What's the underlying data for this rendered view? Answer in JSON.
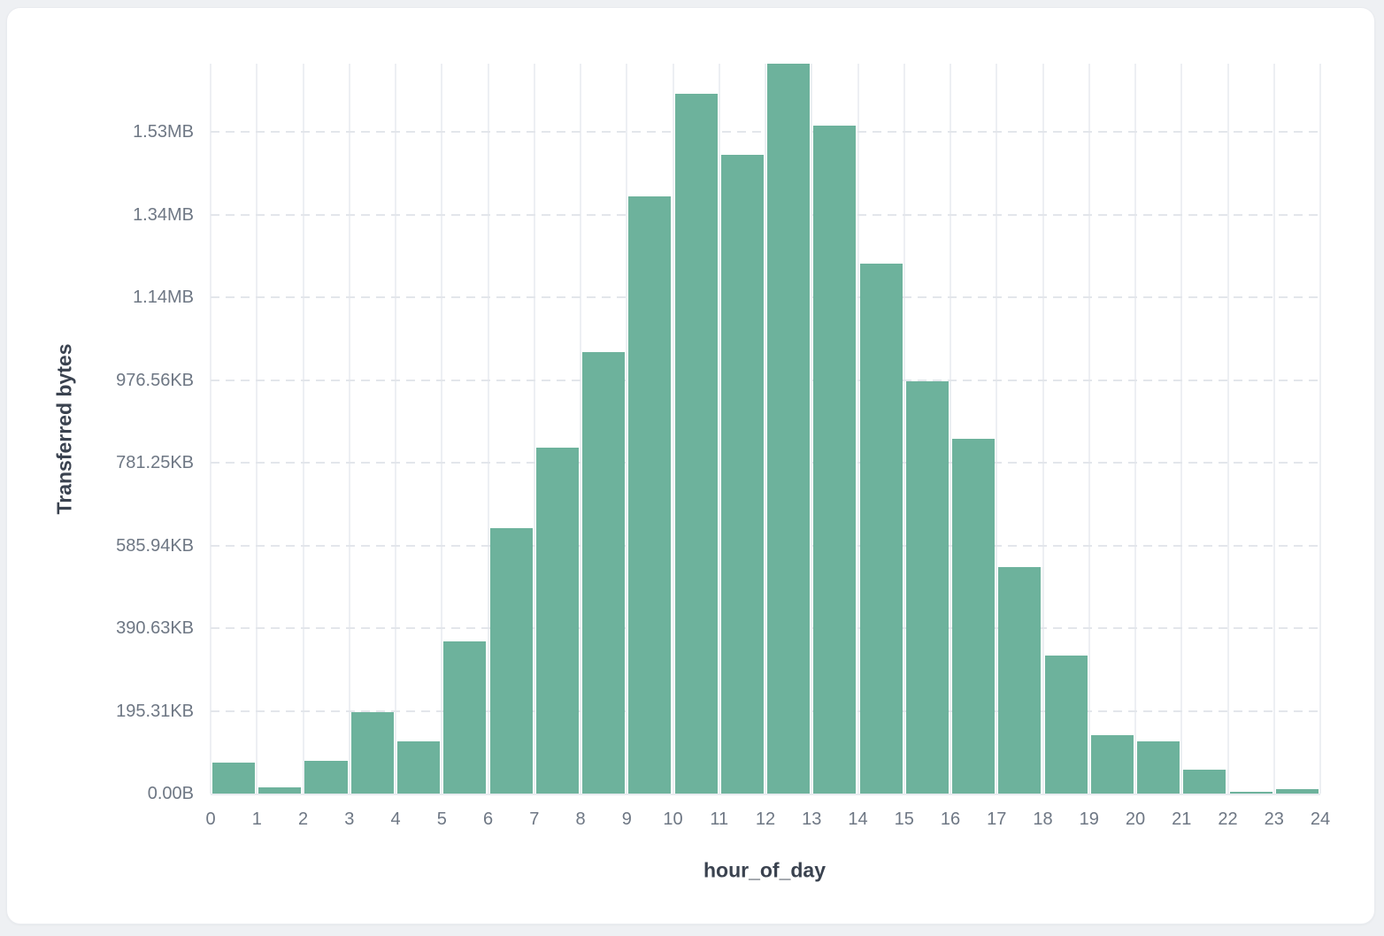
{
  "page": {
    "background_color": "#eef0f3",
    "card_background_color": "#ffffff",
    "card_border_color": "#e9ebef"
  },
  "chart_data": {
    "type": "bar",
    "title": "",
    "xlabel": "hour_of_day",
    "ylabel": "Transferred bytes",
    "bar_color": "#6db29c",
    "grid": {
      "vertical": "solid",
      "horizontal": "dashed",
      "legend_position": "none"
    },
    "categories": [
      0,
      1,
      2,
      3,
      4,
      5,
      6,
      7,
      8,
      9,
      10,
      11,
      12,
      13,
      14,
      15,
      16,
      17,
      18,
      19,
      20,
      21,
      22,
      23
    ],
    "values": [
      74000,
      16000,
      79000,
      197000,
      126000,
      368000,
      642000,
      837000,
      1068000,
      1444000,
      1692000,
      1544000,
      1765000,
      1615000,
      1281000,
      998000,
      857000,
      548000,
      334000,
      141000,
      126000,
      57000,
      4000,
      11000
    ],
    "values_unit": "bytes",
    "ylim": [
      0,
      1765000
    ],
    "xlim": [
      0,
      24
    ],
    "x_ticks": [
      "0",
      "1",
      "2",
      "3",
      "4",
      "5",
      "6",
      "7",
      "8",
      "9",
      "10",
      "11",
      "12",
      "13",
      "14",
      "15",
      "16",
      "17",
      "18",
      "19",
      "20",
      "21",
      "22",
      "23",
      "24"
    ],
    "y_ticks": [
      {
        "label": "0.00B",
        "value": 0
      },
      {
        "label": "195.31KB",
        "value": 200000
      },
      {
        "label": "390.63KB",
        "value": 400000
      },
      {
        "label": "585.94KB",
        "value": 600000
      },
      {
        "label": "781.25KB",
        "value": 800000
      },
      {
        "label": "976.56KB",
        "value": 1000000
      },
      {
        "label": "1.14MB",
        "value": 1200000
      },
      {
        "label": "1.34MB",
        "value": 1400000
      },
      {
        "label": "1.53MB",
        "value": 1600000
      }
    ]
  }
}
